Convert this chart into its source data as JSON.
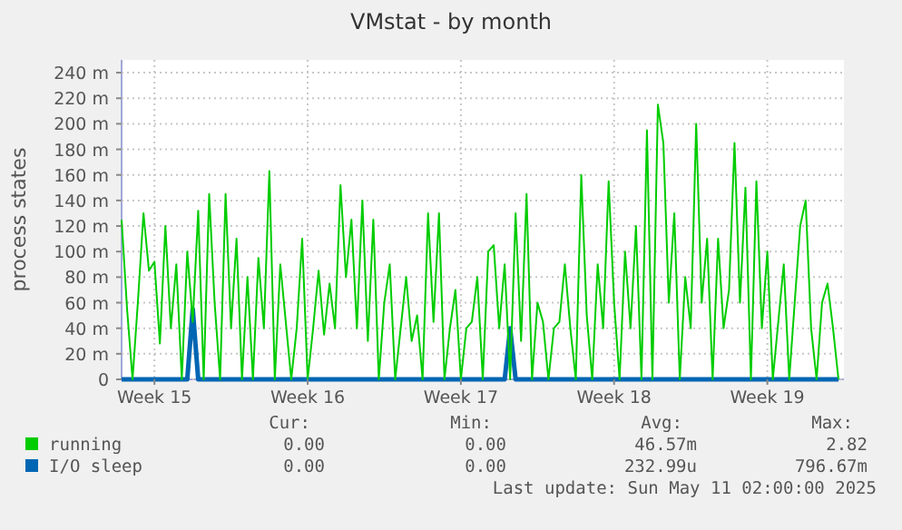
{
  "chart_data": {
    "type": "line",
    "title": "VMstat - by month",
    "ylabel": "process states",
    "categories": [
      null,
      null,
      null,
      null,
      null,
      null,
      "Week 15",
      null,
      null,
      null,
      null,
      null,
      null,
      null,
      null,
      null,
      null,
      null,
      null,
      null,
      null,
      null,
      null,
      null,
      null,
      null,
      null,
      null,
      null,
      null,
      null,
      null,
      null,
      null,
      "Week 16",
      null,
      null,
      null,
      null,
      null,
      null,
      null,
      null,
      null,
      null,
      null,
      null,
      null,
      null,
      null,
      null,
      null,
      null,
      null,
      null,
      null,
      null,
      null,
      null,
      null,
      null,
      null,
      "Week 17",
      null,
      null,
      null,
      null,
      null,
      null,
      null,
      null,
      null,
      null,
      null,
      null,
      null,
      null,
      null,
      null,
      null,
      null,
      null,
      null,
      null,
      null,
      null,
      null,
      null,
      null,
      null,
      "Week 18",
      null,
      null,
      null,
      null,
      null,
      null,
      null,
      null,
      null,
      null,
      null,
      null,
      null,
      null,
      null,
      null,
      null,
      null,
      null,
      null,
      null,
      null,
      null,
      null,
      null,
      null,
      null,
      "Week 19",
      null,
      null,
      null,
      null,
      null,
      null,
      null,
      null,
      null,
      null,
      null,
      null,
      null
    ],
    "ylim": [
      0,
      250
    ],
    "yticks": [
      0,
      {
        "value": 20,
        "label": "20 m"
      },
      {
        "value": 40,
        "label": "40 m"
      },
      {
        "value": 60,
        "label": "60 m"
      },
      {
        "value": 80,
        "label": "80 m"
      },
      {
        "value": 100,
        "label": "100 m"
      },
      {
        "value": 120,
        "label": "120 m"
      },
      {
        "value": 140,
        "label": "140 m"
      },
      {
        "value": 160,
        "label": "160 m"
      },
      {
        "value": 180,
        "label": "180 m"
      },
      {
        "value": 200,
        "label": "200 m"
      },
      {
        "value": 220,
        "label": "220 m"
      },
      {
        "value": 240,
        "label": "240 m"
      }
    ],
    "grid": true,
    "legend": "bottom",
    "line_style": "solid",
    "marker": "none",
    "series": [
      {
        "name": "running",
        "color": "#00cc00",
        "values": [
          125,
          55,
          0,
          62,
          130,
          85,
          92,
          28,
          120,
          40,
          90,
          0,
          100,
          45,
          132,
          0,
          145,
          60,
          0,
          145,
          40,
          110,
          0,
          80,
          0,
          95,
          40,
          163,
          0,
          90,
          45,
          0,
          40,
          110,
          0,
          40,
          85,
          35,
          75,
          40,
          152,
          80,
          125,
          40,
          140,
          30,
          125,
          0,
          60,
          90,
          0,
          40,
          80,
          30,
          50,
          0,
          130,
          45,
          130,
          0,
          40,
          70,
          0,
          40,
          45,
          80,
          0,
          100,
          105,
          40,
          90,
          0,
          130,
          30,
          145,
          0,
          60,
          45,
          0,
          40,
          45,
          90,
          40,
          0,
          160,
          50,
          0,
          90,
          40,
          155,
          60,
          0,
          100,
          40,
          120,
          0,
          195,
          0,
          215,
          185,
          60,
          130,
          0,
          80,
          40,
          200,
          60,
          110,
          0,
          110,
          40,
          70,
          185,
          60,
          150,
          0,
          155,
          40,
          100,
          0,
          45,
          90,
          0,
          60,
          120,
          140,
          40,
          0,
          60,
          75,
          40,
          0
        ]
      },
      {
        "name": "I/O sleep",
        "color": "#0066b3",
        "values": [
          0,
          0,
          0,
          0,
          0,
          0,
          0,
          0,
          0,
          0,
          0,
          0,
          0,
          55,
          0,
          0,
          0,
          0,
          0,
          0,
          0,
          0,
          0,
          0,
          0,
          0,
          0,
          0,
          0,
          0,
          0,
          0,
          0,
          0,
          0,
          0,
          0,
          0,
          0,
          0,
          0,
          0,
          0,
          0,
          0,
          0,
          0,
          0,
          0,
          0,
          0,
          0,
          0,
          0,
          0,
          0,
          0,
          0,
          0,
          0,
          0,
          0,
          0,
          0,
          0,
          0,
          0,
          0,
          0,
          0,
          0,
          40,
          0,
          0,
          0,
          0,
          0,
          0,
          0,
          0,
          0,
          0,
          0,
          0,
          0,
          0,
          0,
          0,
          0,
          0,
          0,
          0,
          0,
          0,
          0,
          0,
          0,
          0,
          0,
          0,
          0,
          0,
          0,
          0,
          0,
          0,
          0,
          0,
          0,
          0,
          0,
          0,
          0,
          0,
          0,
          0,
          0,
          0,
          0,
          0,
          0,
          0,
          0,
          0,
          0,
          0,
          0,
          0,
          0,
          0,
          0,
          0
        ]
      }
    ],
    "annotations": [
      "Cur:",
      "Min:",
      "Avg:",
      "Max:",
      "0.00",
      "0.00",
      "46.57m",
      "2.82",
      "0.00",
      "0.00",
      "232.99u",
      "796.67m",
      "Last update:  Sun May 11 02:00:00 2025"
    ]
  }
}
